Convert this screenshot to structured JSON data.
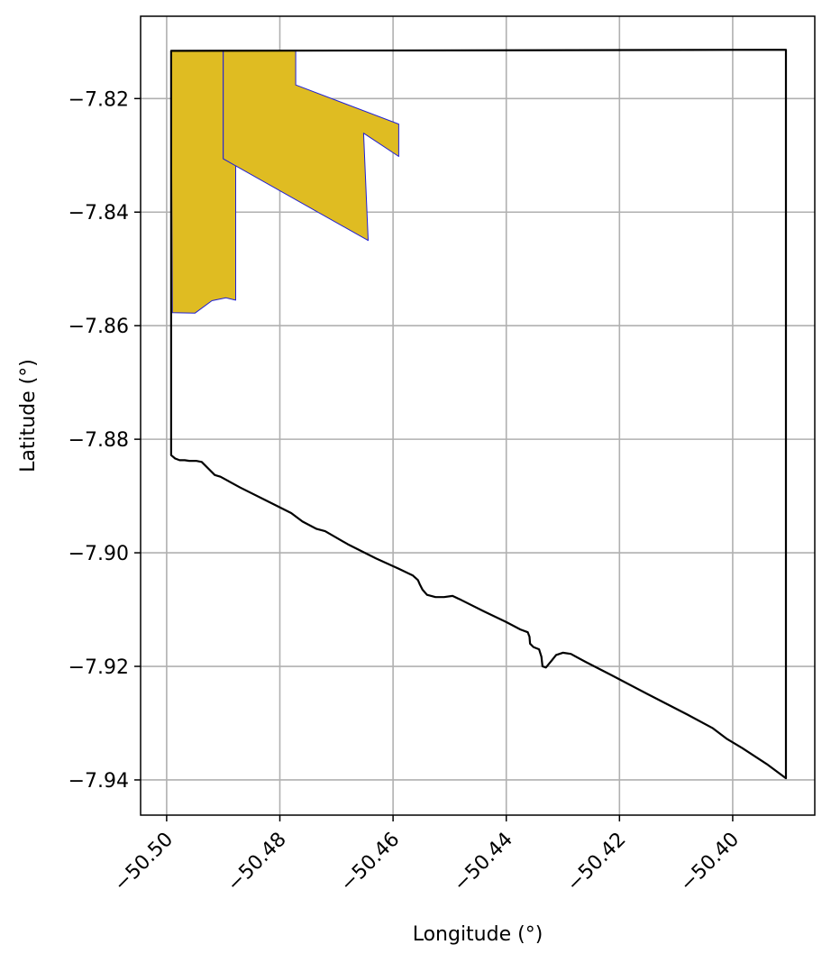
{
  "chart_data": {
    "type": "map",
    "xlabel": "Longitude (°)",
    "ylabel": "Latitude (°)",
    "xlim": [
      -50.5046,
      -50.3855
    ],
    "ylim": [
      -7.9462,
      -7.8055
    ],
    "grid": true,
    "x_ticks": [
      {
        "value": -50.5,
        "label": "−50.50"
      },
      {
        "value": -50.48,
        "label": "−50.48"
      },
      {
        "value": -50.46,
        "label": "−50.46"
      },
      {
        "value": -50.44,
        "label": "−50.44"
      },
      {
        "value": -50.42,
        "label": "−50.42"
      },
      {
        "value": -50.4,
        "label": "−50.40"
      }
    ],
    "y_ticks": [
      {
        "value": -7.82,
        "label": "−7.82"
      },
      {
        "value": -7.84,
        "label": "−7.84"
      },
      {
        "value": -7.86,
        "label": "−7.86"
      },
      {
        "value": -7.88,
        "label": "−7.88"
      },
      {
        "value": -7.9,
        "label": "−7.90"
      },
      {
        "value": -7.92,
        "label": "−7.92"
      },
      {
        "value": -7.94,
        "label": "−7.94"
      }
    ],
    "boundary": {
      "stroke": "#000000",
      "fill": "none",
      "coords": [
        [
          -50.4992,
          -7.8116
        ],
        [
          -50.3906,
          -7.8114
        ],
        [
          -50.3906,
          -7.9397
        ],
        [
          -50.394,
          -7.9372
        ],
        [
          -50.3983,
          -7.9344
        ],
        [
          -50.401,
          -7.9328
        ],
        [
          -50.4035,
          -7.9309
        ],
        [
          -50.408,
          -7.9285
        ],
        [
          -50.415,
          -7.9249
        ],
        [
          -50.4215,
          -7.9215
        ],
        [
          -50.426,
          -7.9192
        ],
        [
          -50.4286,
          -7.9178
        ],
        [
          -50.43,
          -7.9176
        ],
        [
          -50.4312,
          -7.918
        ],
        [
          -50.432,
          -7.919
        ],
        [
          -50.433,
          -7.9202
        ],
        [
          -50.4336,
          -7.92
        ],
        [
          -50.4338,
          -7.9183
        ],
        [
          -50.4342,
          -7.917
        ],
        [
          -50.4352,
          -7.9166
        ],
        [
          -50.4358,
          -7.916
        ],
        [
          -50.4359,
          -7.9148
        ],
        [
          -50.4362,
          -7.914
        ],
        [
          -50.4375,
          -7.9135
        ],
        [
          -50.44,
          -7.9122
        ],
        [
          -50.444,
          -7.9103
        ],
        [
          -50.448,
          -7.9083
        ],
        [
          -50.4495,
          -7.9076
        ],
        [
          -50.451,
          -7.9078
        ],
        [
          -50.4525,
          -7.9078
        ],
        [
          -50.454,
          -7.9074
        ],
        [
          -50.4548,
          -7.9065
        ],
        [
          -50.4553,
          -7.9055
        ],
        [
          -50.4556,
          -7.9048
        ],
        [
          -50.4565,
          -7.904
        ],
        [
          -50.459,
          -7.9028
        ],
        [
          -50.463,
          -7.901
        ],
        [
          -50.468,
          -7.8985
        ],
        [
          -50.472,
          -7.8962
        ],
        [
          -50.4735,
          -7.8958
        ],
        [
          -50.476,
          -7.8945
        ],
        [
          -50.478,
          -7.893
        ],
        [
          -50.482,
          -7.891
        ],
        [
          -50.487,
          -7.8885
        ],
        [
          -50.4905,
          -7.8866
        ],
        [
          -50.4915,
          -7.8863
        ],
        [
          -50.4925,
          -7.8853
        ],
        [
          -50.4938,
          -7.884
        ],
        [
          -50.4948,
          -7.8838
        ],
        [
          -50.496,
          -7.8838
        ],
        [
          -50.4968,
          -7.8837
        ],
        [
          -50.4977,
          -7.8837
        ],
        [
          -50.4985,
          -7.8834
        ],
        [
          -50.4992,
          -7.8828
        ],
        [
          -50.4992,
          -7.8116
        ]
      ]
    },
    "polygons": [
      {
        "fill": "#dfbc22",
        "stroke": "#1f1fd6",
        "coords": [
          [
            -50.4992,
            -7.8116
          ],
          [
            -50.49,
            -7.8116
          ],
          [
            -50.49,
            -7.8306
          ],
          [
            -50.4878,
            -7.8318
          ],
          [
            -50.4878,
            -7.8555
          ],
          [
            -50.4895,
            -7.8551
          ],
          [
            -50.492,
            -7.8556
          ],
          [
            -50.495,
            -7.8578
          ],
          [
            -50.499,
            -7.8577
          ],
          [
            -50.4992,
            -7.8116
          ]
        ]
      },
      {
        "fill": "#dfbc22",
        "stroke": "#1f1fd6",
        "coords": [
          [
            -50.49,
            -7.8116
          ],
          [
            -50.4772,
            -7.8116
          ],
          [
            -50.4772,
            -7.8176
          ],
          [
            -50.459,
            -7.8245
          ],
          [
            -50.459,
            -7.8302
          ],
          [
            -50.4652,
            -7.8261
          ],
          [
            -50.4644,
            -7.845
          ],
          [
            -50.49,
            -7.8306
          ],
          [
            -50.49,
            -7.8116
          ]
        ]
      }
    ]
  }
}
